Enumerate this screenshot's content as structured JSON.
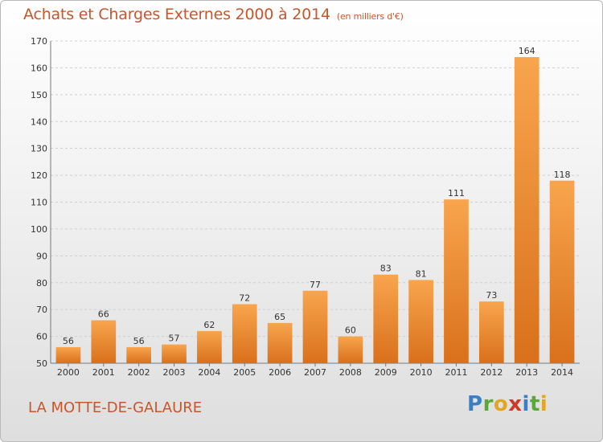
{
  "header": {
    "title": "Achats et Charges Externes 2000 à 2014",
    "subtitle": "(en milliers d'€)"
  },
  "footer": {
    "town": "LA MOTTE-DE-GALAURE",
    "logo_letters": [
      "P",
      "r",
      "o",
      "x",
      "i",
      "t",
      "i"
    ]
  },
  "colors": {
    "bar_light": "#f8a54e",
    "bar_dark": "#d9701b",
    "title": "#c8562b",
    "grid": "#cfcfcf"
  },
  "chart_data": {
    "type": "bar",
    "title": "Achats et Charges Externes 2000 à 2014",
    "subtitle": "(en milliers d'€)",
    "xlabel": "",
    "ylabel": "",
    "categories": [
      "2000",
      "2001",
      "2002",
      "2003",
      "2004",
      "2005",
      "2006",
      "2007",
      "2008",
      "2009",
      "2010",
      "2011",
      "2012",
      "2013",
      "2014"
    ],
    "values": [
      56,
      66,
      56,
      57,
      62,
      72,
      65,
      77,
      60,
      83,
      81,
      111,
      73,
      164,
      118
    ],
    "ylim": [
      50,
      170
    ],
    "yticks": [
      50,
      60,
      70,
      80,
      90,
      100,
      110,
      120,
      130,
      140,
      150,
      160,
      170
    ],
    "grid": true,
    "grid_style": "dashed horizontal",
    "data_labels": true
  }
}
